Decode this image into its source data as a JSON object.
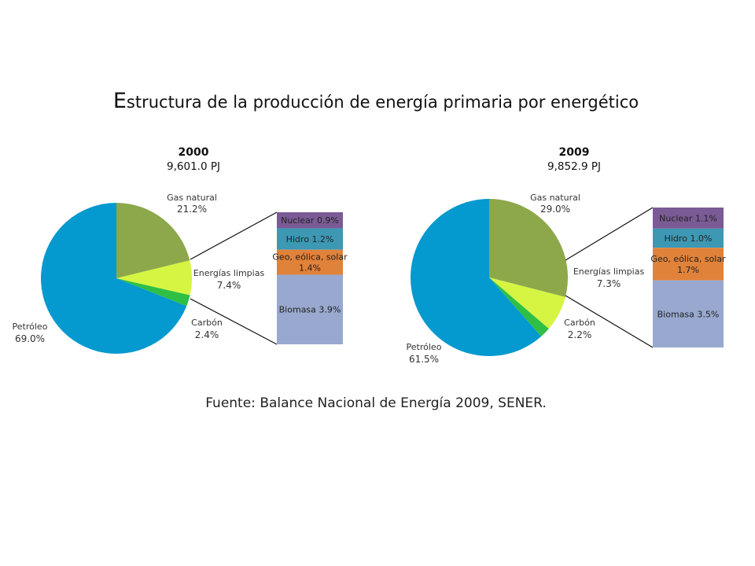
{
  "title": "Estructura de la producción de energía primaria por energético",
  "source": "Fuente: Balance Nacional de Energía 2009, SENER.",
  "colors": {
    "gas_natural": "#8da84b",
    "energias_limpias": "#d6f542",
    "carbon": "#2fbf45",
    "petroleo": "#0499cf",
    "nuclear": "#7a5b95",
    "hidro": "#3d98b4",
    "geo": "#e0823a",
    "biomasa": "#98a8cf"
  },
  "chart_data": [
    {
      "type": "pie",
      "title": "2000",
      "subtitle": "9,601.0 PJ",
      "slices": [
        {
          "key": "gas_natural",
          "name": "Gas natural",
          "value": 21.2,
          "value_label": "21.2%"
        },
        {
          "key": "energias_limpias",
          "name": "Energías limpias",
          "value": 7.4,
          "value_label": "7.4%"
        },
        {
          "key": "carbon",
          "name": "Carbón",
          "value": 2.4,
          "value_label": "2.4%"
        },
        {
          "key": "petroleo",
          "name": "Petróleo",
          "value": 69.0,
          "value_label": "69.0%"
        }
      ],
      "breakdown_of": "Energías limpias",
      "breakdown": [
        {
          "key": "nuclear",
          "name": "Nuclear",
          "value": 0.9,
          "value_label": "0.9%"
        },
        {
          "key": "hidro",
          "name": "Hidro",
          "value": 1.2,
          "value_label": "1.2%"
        },
        {
          "key": "geo",
          "name": "Geo, eólica, solar",
          "value": 1.4,
          "value_label": "1.4%"
        },
        {
          "key": "biomasa",
          "name": "Biomasa",
          "value": 3.9,
          "value_label": "3.9%"
        }
      ]
    },
    {
      "type": "pie",
      "title": "2009",
      "subtitle": "9,852.9 PJ",
      "slices": [
        {
          "key": "gas_natural",
          "name": "Gas natural",
          "value": 29.0,
          "value_label": "29.0%"
        },
        {
          "key": "energias_limpias",
          "name": "Energías limpias",
          "value": 7.3,
          "value_label": "7.3%"
        },
        {
          "key": "carbon",
          "name": "Carbón",
          "value": 2.2,
          "value_label": "2.2%"
        },
        {
          "key": "petroleo",
          "name": "Petróleo",
          "value": 61.5,
          "value_label": "61.5%"
        }
      ],
      "breakdown_of": "Energías limpias",
      "breakdown": [
        {
          "key": "nuclear",
          "name": "Nuclear",
          "value": 1.1,
          "value_label": "1.1%"
        },
        {
          "key": "hidro",
          "name": "Hidro",
          "value": 1.0,
          "value_label": "1.0%"
        },
        {
          "key": "geo",
          "name": "Geo, eólica, solar",
          "value": 1.7,
          "value_label": "1.7%"
        },
        {
          "key": "biomasa",
          "name": "Biomasa",
          "value": 3.5,
          "value_label": "3.5%"
        }
      ]
    }
  ]
}
